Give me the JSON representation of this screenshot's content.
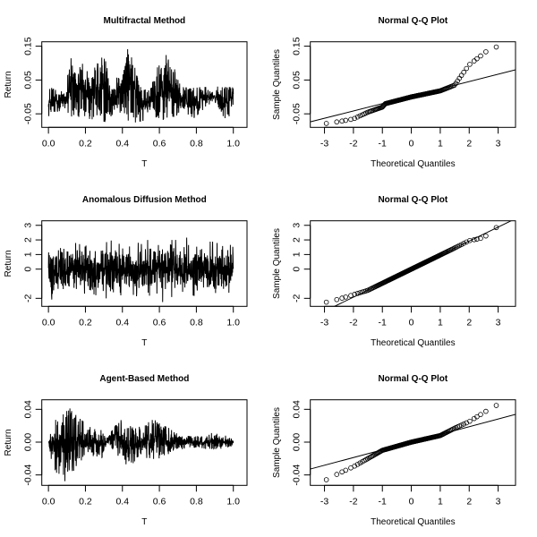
{
  "chart_data": [
    {
      "type": "line",
      "title": "Multifractal Method",
      "xlabel": "T",
      "ylabel": "Return",
      "xlim": [
        -0.036,
        1.074
      ],
      "ylim": [
        -0.09,
        0.163
      ],
      "xticks": [
        "0.0",
        "0.2",
        "0.4",
        "0.6",
        "0.8",
        "1.0"
      ],
      "yticks": [
        "-0.05",
        "0.05",
        "0.15"
      ],
      "ytick_values": [
        -0.05,
        0.05,
        0.15
      ],
      "envelope": [
        [
          0.0,
          0.03,
          -0.06
        ],
        [
          0.05,
          0.03,
          -0.05
        ],
        [
          0.1,
          0.02,
          -0.03
        ],
        [
          0.11,
          0.13,
          -0.07
        ],
        [
          0.14,
          0.1,
          -0.06
        ],
        [
          0.2,
          0.11,
          -0.06
        ],
        [
          0.24,
          0.09,
          -0.07
        ],
        [
          0.28,
          0.11,
          -0.06
        ],
        [
          0.3,
          0.15,
          -0.085
        ],
        [
          0.35,
          0.02,
          -0.05
        ],
        [
          0.41,
          0.14,
          -0.07
        ],
        [
          0.44,
          0.15,
          -0.075
        ],
        [
          0.5,
          0.03,
          -0.08
        ],
        [
          0.55,
          0.02,
          -0.04
        ],
        [
          0.58,
          0.08,
          -0.06
        ],
        [
          0.6,
          0.1,
          -0.07
        ],
        [
          0.66,
          0.14,
          -0.08
        ],
        [
          0.68,
          0.09,
          -0.07
        ],
        [
          0.72,
          0.03,
          -0.04
        ],
        [
          0.77,
          0.03,
          -0.075
        ],
        [
          0.85,
          0.03,
          -0.03
        ],
        [
          0.9,
          0.01,
          -0.01
        ],
        [
          0.92,
          0.04,
          -0.06
        ],
        [
          0.97,
          0.03,
          -0.07
        ],
        [
          1.0,
          0.03,
          -0.02
        ]
      ]
    },
    {
      "type": "scatter",
      "title": "Normal Q-Q Plot",
      "xlabel": "Theoretical Quantiles",
      "ylabel": "Sample Quantiles",
      "xlim": [
        -3.49,
        3.6
      ],
      "ylim": [
        -0.09,
        0.163
      ],
      "xticks": [
        "-3",
        "-2",
        "-1",
        "0",
        "1",
        "2",
        "3"
      ],
      "yticks": [
        "-0.05",
        "0.05",
        "0.15"
      ],
      "ytick_values": [
        -0.05,
        0.05,
        0.15
      ],
      "quantile_curve": [
        [
          -3.3,
          -0.083
        ],
        [
          -2.5,
          -0.073
        ],
        [
          -2,
          -0.065
        ],
        [
          -1.5,
          -0.045
        ],
        [
          -1,
          -0.03
        ],
        [
          -0.9,
          -0.02
        ],
        [
          0,
          0
        ],
        [
          1,
          0.018
        ],
        [
          1.5,
          0.035
        ],
        [
          1.7,
          0.06
        ],
        [
          2,
          0.095
        ],
        [
          2.3,
          0.115
        ],
        [
          2.6,
          0.135
        ],
        [
          3,
          0.15
        ],
        [
          3.3,
          0.155
        ]
      ],
      "reference_line": {
        "slope": 0.0217,
        "intercept": 0.002
      }
    },
    {
      "type": "line",
      "title": "Anomalous Diffusion Method",
      "xlabel": "T",
      "ylabel": "Return",
      "xlim": [
        -0.036,
        1.074
      ],
      "ylim": [
        -2.55,
        3.31
      ],
      "xticks": [
        "0.0",
        "0.2",
        "0.4",
        "0.6",
        "0.8",
        "1.0"
      ],
      "yticks": [
        "-2",
        "0",
        "1",
        "2",
        "3"
      ],
      "ytick_values": [
        -2,
        0,
        1,
        2,
        3
      ],
      "envelope": [
        [
          0.0,
          2.0,
          -2.4
        ],
        [
          0.1,
          2.0,
          -1.8
        ],
        [
          0.21,
          3.0,
          -1.8
        ],
        [
          0.27,
          3.1,
          -2.0
        ],
        [
          0.4,
          2.2,
          -2.0
        ],
        [
          0.5,
          2.0,
          -2.2
        ],
        [
          0.56,
          2.0,
          -2.5
        ],
        [
          0.7,
          2.0,
          -2.0
        ],
        [
          0.85,
          2.5,
          -2.0
        ],
        [
          0.95,
          2.0,
          -2.1
        ],
        [
          1.0,
          1.5,
          -1.2
        ]
      ]
    },
    {
      "type": "scatter",
      "title": "Normal Q-Q Plot",
      "xlabel": "Theoretical Quantiles",
      "ylabel": "Sample Quantiles",
      "xlim": [
        -3.49,
        3.6
      ],
      "ylim": [
        -2.55,
        3.31
      ],
      "xticks": [
        "-3",
        "-2",
        "-1",
        "0",
        "1",
        "2",
        "3"
      ],
      "yticks": [
        "-2",
        "0",
        "1",
        "2",
        "3"
      ],
      "ytick_values": [
        -2,
        0,
        1,
        2,
        3
      ],
      "quantile_curve": [
        [
          -3.3,
          -2.4
        ],
        [
          -2.9,
          -2.25
        ],
        [
          -2.5,
          -2.05
        ],
        [
          -2,
          -1.75
        ],
        [
          -1.5,
          -1.45
        ],
        [
          0,
          0
        ],
        [
          1.5,
          1.45
        ],
        [
          2,
          1.95
        ],
        [
          2.5,
          2.15
        ],
        [
          3,
          2.95
        ],
        [
          3.3,
          3.05
        ]
      ],
      "reference_line": {
        "slope": 0.96,
        "intercept": 0.0
      }
    },
    {
      "type": "line",
      "title": "Agent-Based Method",
      "xlabel": "T",
      "ylabel": "Return",
      "xlim": [
        -0.036,
        1.074
      ],
      "ylim": [
        -0.0527,
        0.0516
      ],
      "xticks": [
        "0.0",
        "0.2",
        "0.4",
        "0.6",
        "0.8",
        "1.0"
      ],
      "yticks": [
        "-0.04",
        "0.00",
        "0.04"
      ],
      "ytick_values": [
        -0.04,
        0.0,
        0.04
      ],
      "envelope": [
        [
          0.0,
          0.001,
          -0.001
        ],
        [
          0.02,
          0.02,
          -0.03
        ],
        [
          0.06,
          0.04,
          -0.045
        ],
        [
          0.09,
          0.05,
          -0.05
        ],
        [
          0.12,
          0.04,
          -0.04
        ],
        [
          0.2,
          0.025,
          -0.02
        ],
        [
          0.3,
          0.01,
          -0.02
        ],
        [
          0.32,
          0.005,
          0.0
        ],
        [
          0.38,
          0.03,
          -0.02
        ],
        [
          0.43,
          0.02,
          -0.03
        ],
        [
          0.5,
          0.02,
          -0.02
        ],
        [
          0.55,
          0.032,
          -0.025
        ],
        [
          0.6,
          0.025,
          -0.02
        ],
        [
          0.7,
          0.01,
          -0.01
        ],
        [
          0.8,
          0.007,
          -0.007
        ],
        [
          0.9,
          0.012,
          -0.01
        ],
        [
          1.0,
          0.005,
          -0.005
        ]
      ]
    },
    {
      "type": "scatter",
      "title": "Normal Q-Q Plot",
      "xlabel": "Theoretical Quantiles",
      "ylabel": "Sample Quantiles",
      "xlim": [
        -3.49,
        3.6
      ],
      "ylim": [
        -0.0527,
        0.0516
      ],
      "xticks": [
        "-3",
        "-2",
        "-1",
        "0",
        "1",
        "2",
        "3"
      ],
      "yticks": [
        "-0.04",
        "0.00",
        "0.04"
      ],
      "ytick_values": [
        -0.04,
        0.0,
        0.04
      ],
      "quantile_curve": [
        [
          -3.3,
          -0.05
        ],
        [
          -3,
          -0.047
        ],
        [
          -2.5,
          -0.038
        ],
        [
          -2,
          -0.03
        ],
        [
          -1.5,
          -0.02
        ],
        [
          -1,
          -0.01
        ],
        [
          0,
          0
        ],
        [
          1,
          0.008
        ],
        [
          1.5,
          0.017
        ],
        [
          2,
          0.025
        ],
        [
          2.5,
          0.036
        ],
        [
          3,
          0.046
        ],
        [
          3.3,
          0.048
        ]
      ],
      "reference_line": {
        "slope": 0.0094,
        "intercept": 0.0
      }
    }
  ]
}
